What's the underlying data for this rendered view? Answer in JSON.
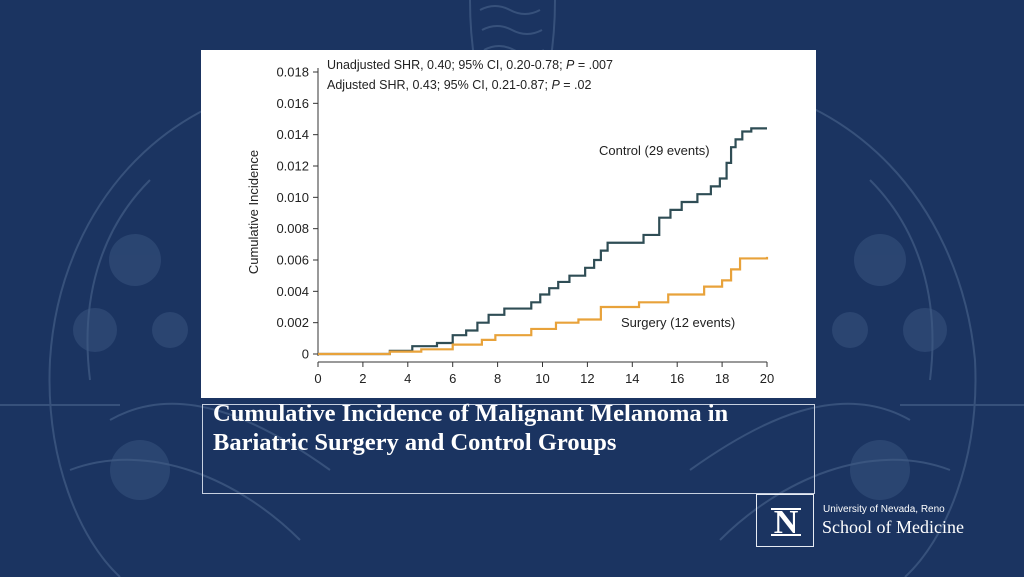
{
  "caption": "Cumulative Incidence of Malignant Melanoma in Bariatric Surgery and Control Groups",
  "institution": {
    "university": "University of Nevada, Reno",
    "school": "School of Medicine",
    "logo_letter": "N"
  },
  "colors": {
    "background": "#1b3461",
    "control": "#2f4d55",
    "surgery": "#e8a23a"
  },
  "chart_data": {
    "type": "line",
    "title": "",
    "xlabel": "",
    "ylabel": "Cumulative Incidence",
    "xlim": [
      0,
      20
    ],
    "ylim": [
      0,
      0.018
    ],
    "x_ticks": [
      "0",
      "2",
      "4",
      "6",
      "8",
      "10",
      "12",
      "14",
      "16",
      "18",
      "20"
    ],
    "y_ticks": [
      "0",
      "0.002",
      "0.004",
      "0.006",
      "0.008",
      "0.010",
      "0.012",
      "0.014",
      "0.016",
      "0.018"
    ],
    "grid": false,
    "annotations": {
      "stat_line1_pre": "Unadjusted SHR, 0.40; 95% CI, 0.20-0.78; ",
      "stat_line1_p": "P",
      "stat_line1_post": " = .007",
      "stat_line2_pre": "Adjusted SHR, 0.43; 95% CI, 0.21-0.87; ",
      "stat_line2_p": "P",
      "stat_line2_post": " = .02"
    },
    "series": [
      {
        "name": "Control (29 events)",
        "step": true,
        "x": [
          0,
          3.2,
          4.2,
          5.3,
          6.0,
          6.6,
          7.1,
          7.6,
          8.3,
          9.5,
          9.9,
          10.3,
          10.7,
          11.2,
          11.9,
          12.3,
          12.6,
          12.9,
          14.5,
          15.2,
          15.7,
          16.2,
          16.9,
          17.5,
          17.9,
          18.2,
          18.4,
          18.6,
          18.9,
          19.3,
          20.0
        ],
        "y": [
          0,
          0.0002,
          0.0005,
          0.0007,
          0.0012,
          0.0015,
          0.002,
          0.0025,
          0.0029,
          0.0033,
          0.0038,
          0.0042,
          0.0046,
          0.005,
          0.0055,
          0.006,
          0.0066,
          0.0071,
          0.0076,
          0.0087,
          0.0092,
          0.0097,
          0.0102,
          0.0107,
          0.0112,
          0.0122,
          0.0132,
          0.0137,
          0.0142,
          0.0144,
          0.0144
        ]
      },
      {
        "name": "Surgery (12 events)",
        "step": true,
        "x": [
          0,
          3.2,
          4.6,
          6.0,
          7.3,
          7.9,
          9.5,
          10.6,
          11.6,
          12.6,
          14.3,
          15.6,
          17.2,
          18.0,
          18.4,
          18.8,
          20.0
        ],
        "y": [
          0,
          0.00015,
          0.0003,
          0.0006,
          0.0009,
          0.0012,
          0.0016,
          0.002,
          0.0022,
          0.003,
          0.0033,
          0.0038,
          0.0043,
          0.0047,
          0.0054,
          0.0061,
          0.0062
        ]
      }
    ]
  }
}
